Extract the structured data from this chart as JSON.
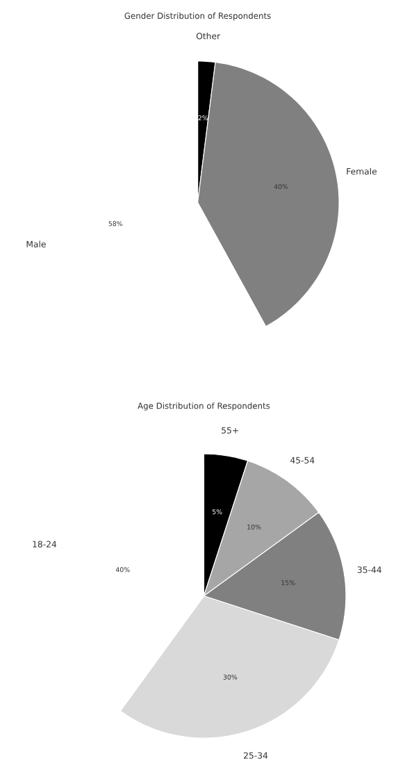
{
  "chart_data": [
    {
      "type": "pie",
      "title": "Gender Distribution of Respondents",
      "categories": [
        "Other",
        "Female",
        "Male"
      ],
      "values": [
        2,
        40,
        58
      ],
      "colors": [
        "#000000",
        "#808080",
        "#ffffff"
      ],
      "value_labels": [
        "2%",
        "40%",
        "58%"
      ]
    },
    {
      "type": "pie",
      "title": "Age Distribution of Respondents",
      "categories": [
        "55+",
        "45-54",
        "35-44",
        "25-34",
        "18-24"
      ],
      "values": [
        5,
        10,
        15,
        30,
        40
      ],
      "colors": [
        "#000000",
        "#a6a6a6",
        "#808080",
        "#d9d9d9",
        "#ffffff"
      ],
      "value_labels": [
        "5%",
        "10%",
        "15%",
        "30%",
        "40%"
      ]
    }
  ]
}
